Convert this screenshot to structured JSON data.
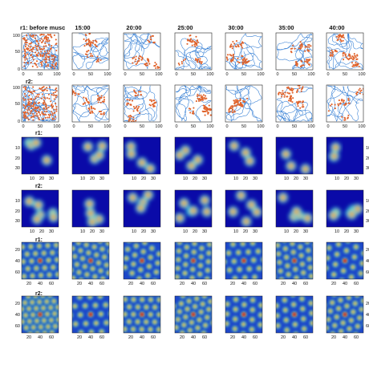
{
  "figure": {
    "columns": [
      "r1: before musc",
      "15:00",
      "20:00",
      "25:00",
      "30:00",
      "35:00",
      "40:00"
    ],
    "rows": [
      {
        "label": "r1:",
        "kind": "trajectory"
      },
      {
        "label": "r2:",
        "kind": "trajectory"
      },
      {
        "label": "r1:",
        "kind": "ratemap"
      },
      {
        "label": "r2:",
        "kind": "ratemap"
      },
      {
        "label": "r1:",
        "kind": "autocorrelogram"
      },
      {
        "label": "r2:",
        "kind": "autocorrelogram"
      }
    ],
    "traj_ticks": {
      "y": [
        "100",
        "50",
        "0"
      ],
      "x": [
        "0",
        "50",
        "100"
      ]
    },
    "rate_ticks": {
      "y": [
        "10",
        "20",
        "30"
      ],
      "x": [
        "10",
        "20",
        "30"
      ]
    },
    "ac_ticks": {
      "y": [
        "20",
        "40",
        "60"
      ],
      "x": [
        "20",
        "40",
        "60"
      ]
    }
  }
}
